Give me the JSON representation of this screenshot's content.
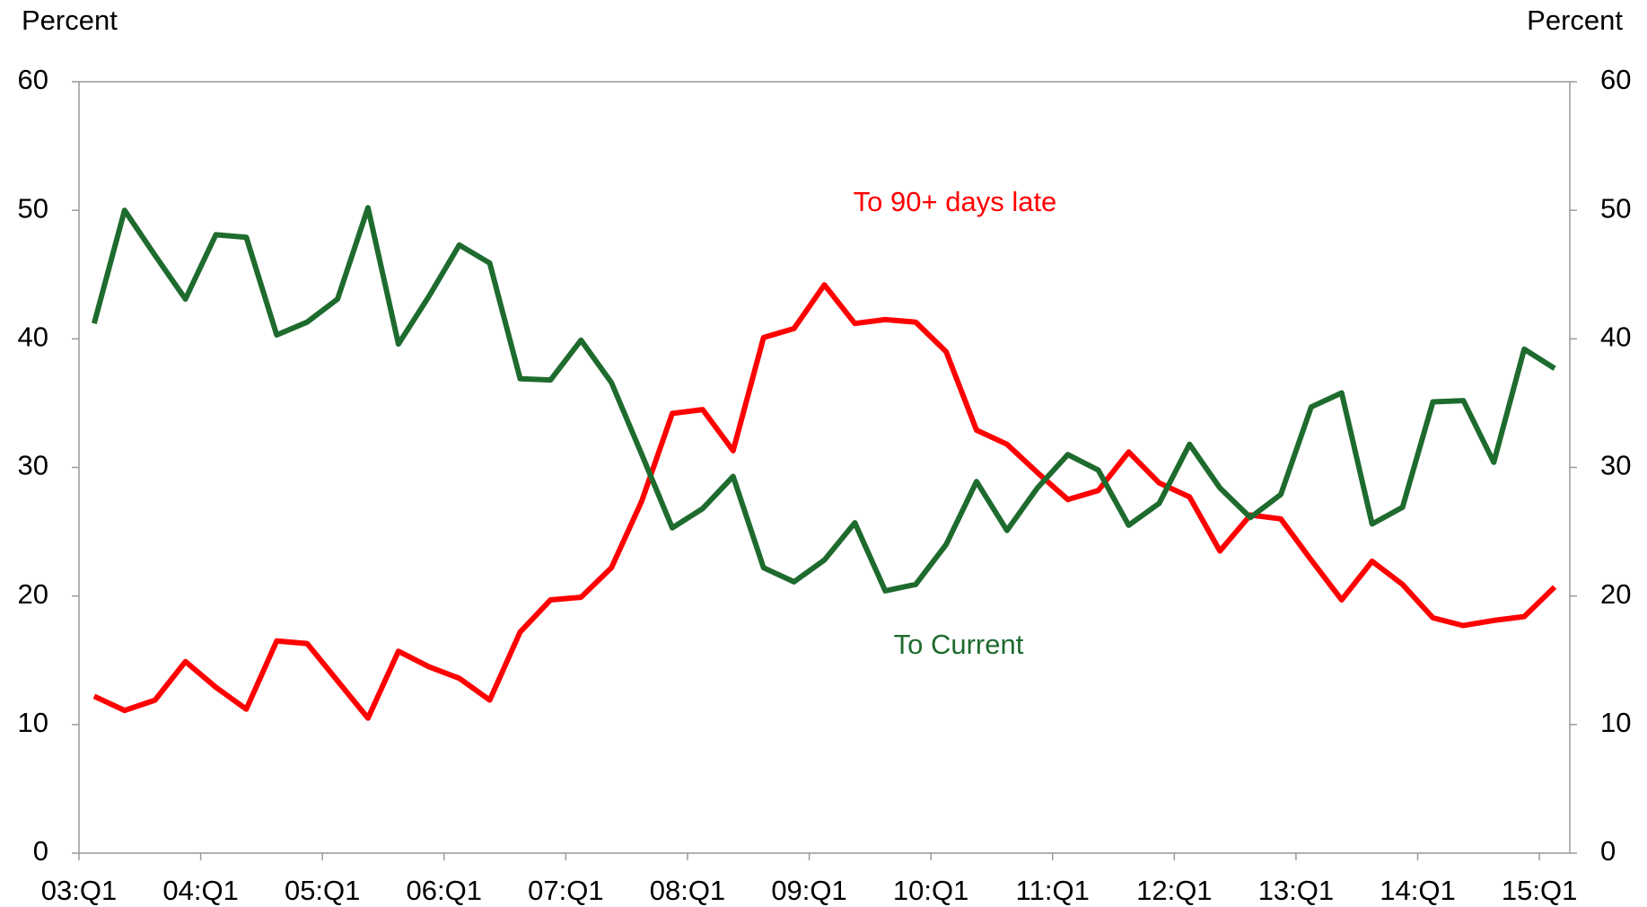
{
  "chart_data": {
    "type": "line",
    "y_label": "Percent",
    "y2_label": "Percent",
    "categories": [
      "03:Q1",
      null,
      null,
      null,
      "04:Q1",
      null,
      null,
      null,
      "05:Q1",
      null,
      null,
      null,
      "06:Q1",
      null,
      null,
      null,
      "07:Q1",
      null,
      null,
      null,
      "08:Q1",
      null,
      null,
      null,
      "09:Q1",
      null,
      null,
      null,
      "10:Q1",
      null,
      null,
      null,
      "11:Q1",
      null,
      null,
      null,
      "12:Q1",
      null,
      null,
      null,
      "13:Q1",
      null,
      null,
      null,
      "14:Q1",
      null,
      null,
      null,
      "15:Q1"
    ],
    "series": [
      {
        "name": "To 90+ days late",
        "color": "#ff0000",
        "values": [
          12.2,
          11.1,
          11.9,
          14.9,
          12.9,
          11.2,
          16.5,
          16.3,
          13.4,
          10.5,
          15.7,
          14.5,
          13.6,
          11.9,
          17.2,
          19.7,
          19.9,
          22.2,
          27.4,
          34.2,
          34.5,
          31.3,
          40.1,
          40.8,
          44.2,
          41.2,
          41.5,
          41.3,
          39.0,
          32.9,
          31.8,
          29.6,
          27.5,
          28.2,
          31.2,
          28.8,
          27.7,
          23.5,
          26.3,
          26.0,
          22.8,
          19.7,
          22.7,
          20.9,
          18.3,
          17.7,
          18.1,
          18.4,
          20.7
        ]
      },
      {
        "name": "To Current",
        "color": "#1e6b2e",
        "values": [
          41.2,
          50.0,
          46.5,
          43.1,
          48.1,
          47.9,
          40.3,
          41.3,
          43.1,
          50.2,
          39.6,
          43.3,
          47.3,
          45.9,
          36.9,
          36.8,
          39.9,
          36.6,
          31.0,
          25.3,
          26.8,
          29.3,
          22.2,
          21.1,
          22.8,
          25.7,
          20.4,
          20.9,
          24.0,
          28.9,
          25.1,
          28.4,
          31.0,
          29.8,
          25.5,
          27.2,
          31.8,
          28.4,
          26.1,
          27.9,
          34.7,
          35.8,
          25.6,
          26.9,
          35.1,
          35.2,
          30.4,
          39.2,
          37.7
        ]
      }
    ],
    "ylim": [
      0,
      60
    ],
    "yticks": [
      0,
      10,
      20,
      30,
      40,
      50,
      60
    ],
    "y2lim": [
      0,
      60
    ],
    "y2ticks": [
      0,
      10,
      20,
      30,
      40,
      50,
      60
    ],
    "grid": false
  }
}
